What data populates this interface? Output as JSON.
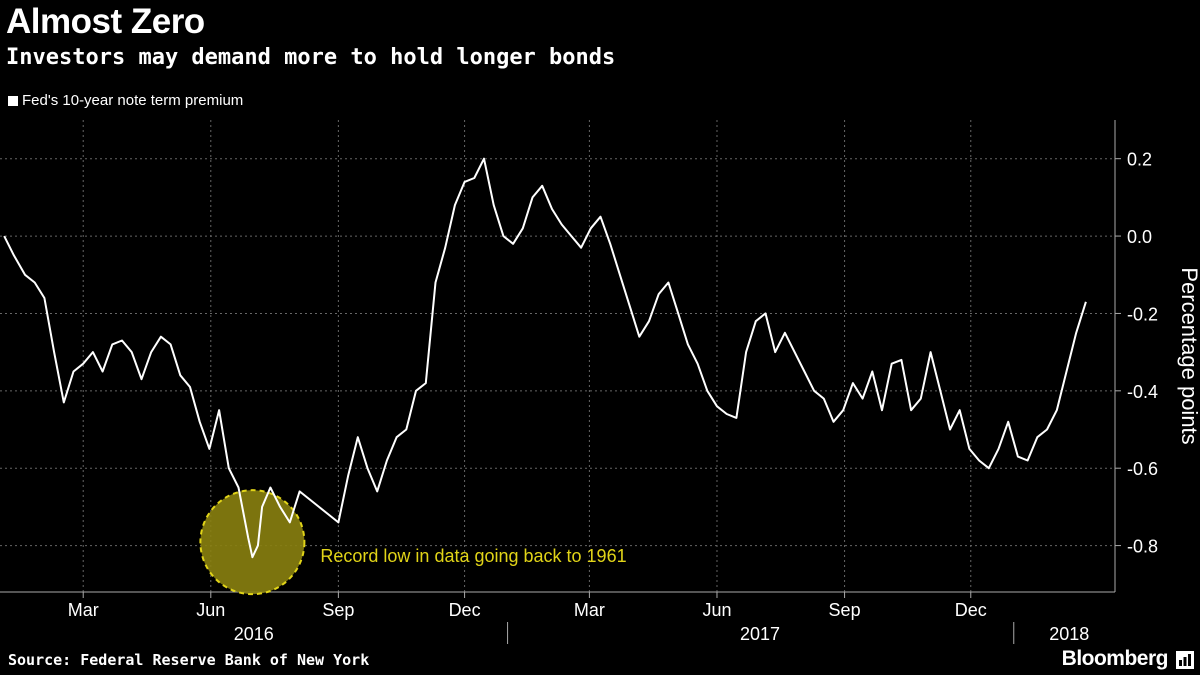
{
  "header": {
    "title": "Almost Zero",
    "subtitle": "Investors may demand more to hold longer bonds"
  },
  "footer": {
    "source": "Source: Federal Reserve Bank of New York",
    "brand": "Bloomberg"
  },
  "colors": {
    "background": "#000000",
    "line": "#ffffff",
    "grid": "#666666",
    "highlight": "#e1d418",
    "highlight_fill": "#8a8110"
  },
  "chart_data": {
    "type": "line",
    "title": "Almost Zero",
    "subtitle": "Investors may demand more to hold longer bonds",
    "ylabel": "Percentage points",
    "ylim": [
      -0.92,
      0.3
    ],
    "yticks": [
      0.2,
      0.0,
      -0.2,
      -0.4,
      -0.6,
      -0.8
    ],
    "ytick_labels": [
      "0.2",
      "0.0",
      "-0.2",
      "-0.4",
      "-0.6",
      "-0.8"
    ],
    "xlim": [
      "2016-01-01",
      "2018-03-15"
    ],
    "month_ticks": [
      {
        "date": "2016-03-01",
        "label": "Mar"
      },
      {
        "date": "2016-06-01",
        "label": "Jun"
      },
      {
        "date": "2016-09-01",
        "label": "Sep"
      },
      {
        "date": "2016-12-01",
        "label": "Dec"
      },
      {
        "date": "2017-03-01",
        "label": "Mar"
      },
      {
        "date": "2017-06-01",
        "label": "Jun"
      },
      {
        "date": "2017-09-01",
        "label": "Sep"
      },
      {
        "date": "2017-12-01",
        "label": "Dec"
      }
    ],
    "year_labels": [
      {
        "date": "2016-07-02",
        "label": "2016"
      },
      {
        "date": "2017-07-02",
        "label": "2017"
      },
      {
        "date": "2018-02-10",
        "label": "2018"
      }
    ],
    "year_dividers": [
      "2017-01-01",
      "2018-01-01"
    ],
    "grid": true,
    "legend_position": "top-left",
    "series": [
      {
        "name": "Fed's 10-year note term premium",
        "points": [
          [
            "2016-01-04",
            0.0
          ],
          [
            "2016-01-11",
            -0.05
          ],
          [
            "2016-01-19",
            -0.1
          ],
          [
            "2016-01-26",
            -0.12
          ],
          [
            "2016-02-02",
            -0.16
          ],
          [
            "2016-02-09",
            -0.3
          ],
          [
            "2016-02-16",
            -0.43
          ],
          [
            "2016-02-23",
            -0.35
          ],
          [
            "2016-03-01",
            -0.33
          ],
          [
            "2016-03-08",
            -0.3
          ],
          [
            "2016-03-15",
            -0.35
          ],
          [
            "2016-03-22",
            -0.28
          ],
          [
            "2016-03-29",
            -0.27
          ],
          [
            "2016-04-05",
            -0.3
          ],
          [
            "2016-04-12",
            -0.37
          ],
          [
            "2016-04-19",
            -0.3
          ],
          [
            "2016-04-26",
            -0.26
          ],
          [
            "2016-05-03",
            -0.28
          ],
          [
            "2016-05-10",
            -0.36
          ],
          [
            "2016-05-17",
            -0.39
          ],
          [
            "2016-05-24",
            -0.48
          ],
          [
            "2016-05-31",
            -0.55
          ],
          [
            "2016-06-07",
            -0.45
          ],
          [
            "2016-06-14",
            -0.6
          ],
          [
            "2016-06-21",
            -0.65
          ],
          [
            "2016-06-28",
            -0.78
          ],
          [
            "2016-07-01",
            -0.83
          ],
          [
            "2016-07-05",
            -0.8
          ],
          [
            "2016-07-08",
            -0.7
          ],
          [
            "2016-07-14",
            -0.65
          ],
          [
            "2016-07-21",
            -0.7
          ],
          [
            "2016-07-28",
            -0.74
          ],
          [
            "2016-08-04",
            -0.66
          ],
          [
            "2016-08-11",
            -0.68
          ],
          [
            "2016-08-18",
            -0.7
          ],
          [
            "2016-08-25",
            -0.72
          ],
          [
            "2016-09-01",
            -0.74
          ],
          [
            "2016-09-08",
            -0.62
          ],
          [
            "2016-09-15",
            -0.52
          ],
          [
            "2016-09-22",
            -0.6
          ],
          [
            "2016-09-29",
            -0.66
          ],
          [
            "2016-10-06",
            -0.58
          ],
          [
            "2016-10-13",
            -0.52
          ],
          [
            "2016-10-20",
            -0.5
          ],
          [
            "2016-10-27",
            -0.4
          ],
          [
            "2016-11-03",
            -0.38
          ],
          [
            "2016-11-10",
            -0.12
          ],
          [
            "2016-11-17",
            -0.03
          ],
          [
            "2016-11-24",
            0.08
          ],
          [
            "2016-12-01",
            0.14
          ],
          [
            "2016-12-08",
            0.15
          ],
          [
            "2016-12-15",
            0.2
          ],
          [
            "2016-12-22",
            0.08
          ],
          [
            "2016-12-29",
            0.0
          ],
          [
            "2017-01-05",
            -0.02
          ],
          [
            "2017-01-12",
            0.02
          ],
          [
            "2017-01-19",
            0.1
          ],
          [
            "2017-01-26",
            0.13
          ],
          [
            "2017-02-02",
            0.07
          ],
          [
            "2017-02-09",
            0.03
          ],
          [
            "2017-02-16",
            0.0
          ],
          [
            "2017-02-23",
            -0.03
          ],
          [
            "2017-03-02",
            0.02
          ],
          [
            "2017-03-09",
            0.05
          ],
          [
            "2017-03-16",
            -0.02
          ],
          [
            "2017-03-23",
            -0.1
          ],
          [
            "2017-03-30",
            -0.18
          ],
          [
            "2017-04-06",
            -0.26
          ],
          [
            "2017-04-13",
            -0.22
          ],
          [
            "2017-04-20",
            -0.15
          ],
          [
            "2017-04-27",
            -0.12
          ],
          [
            "2017-05-04",
            -0.2
          ],
          [
            "2017-05-11",
            -0.28
          ],
          [
            "2017-05-18",
            -0.33
          ],
          [
            "2017-05-25",
            -0.4
          ],
          [
            "2017-06-01",
            -0.44
          ],
          [
            "2017-06-08",
            -0.46
          ],
          [
            "2017-06-15",
            -0.47
          ],
          [
            "2017-06-22",
            -0.3
          ],
          [
            "2017-06-29",
            -0.22
          ],
          [
            "2017-07-06",
            -0.2
          ],
          [
            "2017-07-13",
            -0.3
          ],
          [
            "2017-07-20",
            -0.25
          ],
          [
            "2017-07-27",
            -0.3
          ],
          [
            "2017-08-03",
            -0.35
          ],
          [
            "2017-08-10",
            -0.4
          ],
          [
            "2017-08-17",
            -0.42
          ],
          [
            "2017-08-24",
            -0.48
          ],
          [
            "2017-08-31",
            -0.45
          ],
          [
            "2017-09-07",
            -0.38
          ],
          [
            "2017-09-14",
            -0.42
          ],
          [
            "2017-09-21",
            -0.35
          ],
          [
            "2017-09-28",
            -0.45
          ],
          [
            "2017-10-05",
            -0.33
          ],
          [
            "2017-10-12",
            -0.32
          ],
          [
            "2017-10-19",
            -0.45
          ],
          [
            "2017-10-26",
            -0.42
          ],
          [
            "2017-11-02",
            -0.3
          ],
          [
            "2017-11-09",
            -0.4
          ],
          [
            "2017-11-16",
            -0.5
          ],
          [
            "2017-11-23",
            -0.45
          ],
          [
            "2017-11-30",
            -0.55
          ],
          [
            "2017-12-07",
            -0.58
          ],
          [
            "2017-12-14",
            -0.6
          ],
          [
            "2017-12-21",
            -0.55
          ],
          [
            "2017-12-28",
            -0.48
          ],
          [
            "2018-01-04",
            -0.57
          ],
          [
            "2018-01-11",
            -0.58
          ],
          [
            "2018-01-18",
            -0.52
          ],
          [
            "2018-01-25",
            -0.5
          ],
          [
            "2018-02-01",
            -0.45
          ],
          [
            "2018-02-08",
            -0.35
          ],
          [
            "2018-02-15",
            -0.25
          ],
          [
            "2018-02-22",
            -0.17
          ]
        ]
      }
    ],
    "annotations": [
      {
        "text": "Record low in data going back to 1961",
        "date": "2016-07-01",
        "value": -0.83
      }
    ]
  }
}
